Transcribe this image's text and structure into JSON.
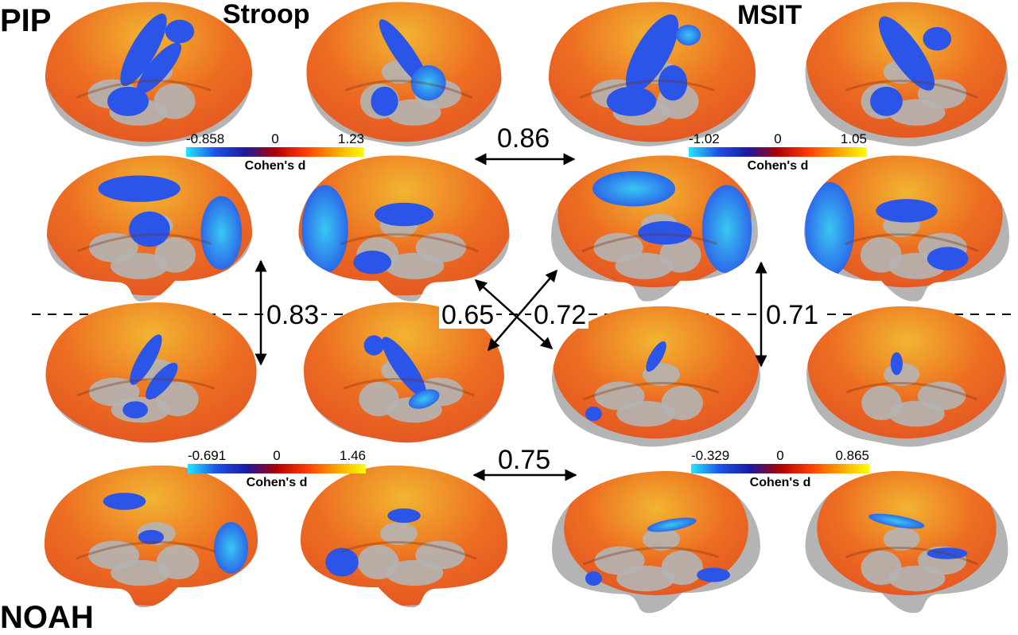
{
  "rows": {
    "top": "PIP",
    "bottom": "NOAH"
  },
  "tasks": {
    "left": "Stroop",
    "right": "MSIT"
  },
  "colorbars": [
    {
      "min": "-0.858",
      "zero": "0",
      "max": "1.23",
      "title": "Cohen's d"
    },
    {
      "min": "-1.02",
      "zero": "0",
      "max": "1.05",
      "title": "Cohen's d"
    },
    {
      "min": "-0.691",
      "zero": "0",
      "max": "1.46",
      "title": "Cohen's d"
    },
    {
      "min": "-0.329",
      "zero": "0",
      "max": "0.865",
      "title": "Cohen's d"
    }
  ],
  "correlations": {
    "pip_stroop_msit": "0.86",
    "stroop_pip_noah": "0.83",
    "pip_stroop_noah_msit": "0.65",
    "pip_msit_noah_stroop": "0.72",
    "msit_pip_noah": "0.71",
    "noah_stroop_msit": "0.75"
  },
  "colors": {
    "surface": "#b4b4b4",
    "positive": "#f0601a",
    "positive_high": "#f5c02a",
    "negative": "#2a55e8",
    "negative_low": "#30b8ee",
    "colorbar_stops": [
      "#22e6ff",
      "#1f4fe6",
      "#1a1aa0",
      "#b00000",
      "#ff3a00",
      "#ffa000",
      "#ffff00"
    ]
  }
}
